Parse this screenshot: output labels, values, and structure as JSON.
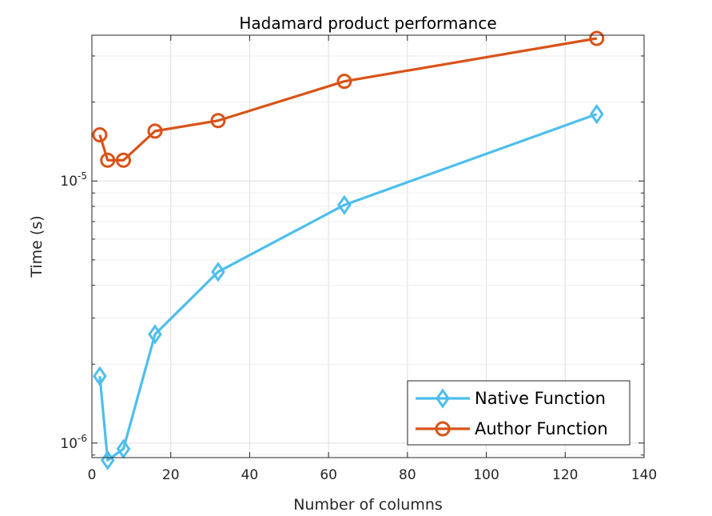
{
  "chart_data": {
    "type": "line",
    "title": "Hadamard product performance",
    "xlabel": "Number of columns",
    "ylabel": "Time (s)",
    "xlim": [
      0,
      140
    ],
    "ylim": [
      8.8e-07,
      3.6e-05
    ],
    "yscale": "log",
    "grid": true,
    "legend_position": "bottom-right",
    "xticks": [
      0,
      20,
      40,
      60,
      80,
      100,
      120,
      140
    ],
    "yticks": [
      {
        "value": 1e-06,
        "base": "10",
        "exp": "-6"
      },
      {
        "value": 1e-05,
        "base": "10",
        "exp": "-5"
      }
    ],
    "series": [
      {
        "name": "Native Function",
        "color": "#4DBEEE",
        "marker": "diamond",
        "x": [
          2,
          4,
          8,
          16,
          32,
          64,
          128
        ],
        "y": [
          1.8e-06,
          8.6e-07,
          9.5e-07,
          2.6e-06,
          4.5e-06,
          8.1e-06,
          1.8e-05
        ]
      },
      {
        "name": "Author Function",
        "color": "#D95319",
        "marker": "circle",
        "x": [
          2,
          4,
          8,
          16,
          32,
          64,
          128
        ],
        "y": [
          1.5e-05,
          1.2e-05,
          1.2e-05,
          1.55e-05,
          1.7e-05,
          2.4e-05,
          3.5e-05
        ]
      }
    ]
  }
}
